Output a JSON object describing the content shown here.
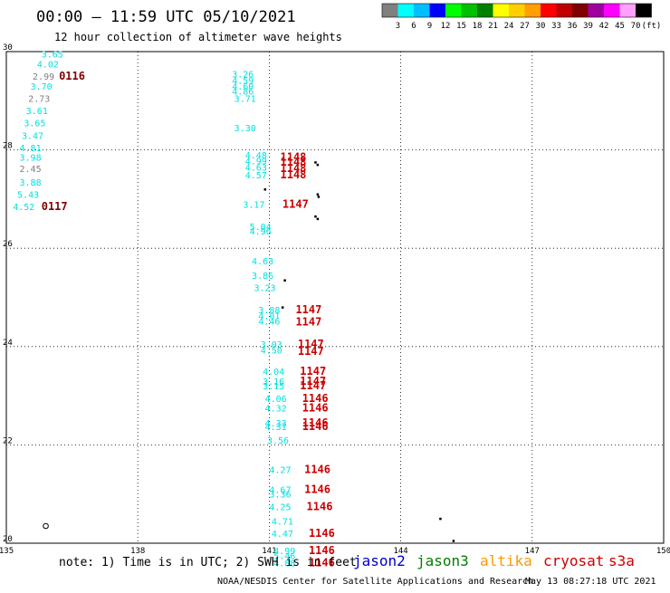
{
  "header": {
    "title": "00:00 – 11:59 UTC 05/10/2021",
    "subtitle": "12 hour collection of altimeter wave heights"
  },
  "legend": {
    "labels": [
      "3",
      "6",
      "9",
      "12",
      "15",
      "18",
      "21",
      "24",
      "27",
      "30",
      "33",
      "36",
      "39",
      "42",
      "45",
      "70",
      "(ft)"
    ],
    "colors": [
      "#808080",
      "#00ffff",
      "#00bfff",
      "#0000ff",
      "#00ff00",
      "#00c000",
      "#008000",
      "#ffff00",
      "#ffd000",
      "#ffa000",
      "#ff0000",
      "#c00000",
      "#800000",
      "#a000a0",
      "#ff00ff",
      "#ffa0ff",
      "#000000"
    ]
  },
  "footer": {
    "note": "note: 1) Time is in UTC; 2) SWH is in feet",
    "missions": [
      {
        "name": "jason2",
        "color": "#0000cc"
      },
      {
        "name": "jason3",
        "color": "#008000"
      },
      {
        "name": "altika",
        "color": "#ff9900"
      },
      {
        "name": "cryosat",
        "color": "#cc0000"
      },
      {
        "name": "s3a",
        "color": "#cc0000"
      }
    ],
    "credit": "NOAA/NESDIS Center for Satellite Applications and Research",
    "timestamp": "May 13 08:27:18 UTC 2021"
  },
  "chart_data": {
    "type": "scatter",
    "xlim": [
      135,
      150
    ],
    "ylim": [
      20,
      30
    ],
    "xticks": [
      "135",
      "138",
      "141",
      "144",
      "147",
      "150"
    ],
    "yticks": [
      "20",
      "22",
      "24",
      "26",
      "28",
      "30"
    ],
    "grid": true,
    "points": [
      {
        "x": 135.8,
        "y": 29.95,
        "label": "3.65",
        "color": "#00e0e0"
      },
      {
        "x": 135.7,
        "y": 29.75,
        "label": "4.02",
        "color": "#00e0e0"
      },
      {
        "x": 135.6,
        "y": 29.5,
        "label": "2.99",
        "color": "#808080"
      },
      {
        "x": 135.55,
        "y": 29.3,
        "label": "3.70",
        "color": "#00e0e0"
      },
      {
        "x": 135.5,
        "y": 29.05,
        "label": "2.73",
        "color": "#808080"
      },
      {
        "x": 135.45,
        "y": 28.8,
        "label": "3.61",
        "color": "#00e0e0"
      },
      {
        "x": 135.4,
        "y": 28.55,
        "label": "3.65",
        "color": "#00e0e0"
      },
      {
        "x": 135.35,
        "y": 28.3,
        "label": "3.47",
        "color": "#00e0e0"
      },
      {
        "x": 135.3,
        "y": 28.05,
        "label": "4.81",
        "color": "#00e0e0"
      },
      {
        "x": 135.3,
        "y": 27.85,
        "label": "3.98",
        "color": "#00e0e0"
      },
      {
        "x": 135.3,
        "y": 27.62,
        "label": "2.45",
        "color": "#808080"
      },
      {
        "x": 135.3,
        "y": 27.35,
        "label": "3.88",
        "color": "#00e0e0"
      },
      {
        "x": 135.25,
        "y": 27.1,
        "label": "5.43",
        "color": "#00e0e0"
      },
      {
        "x": 135.15,
        "y": 26.85,
        "label": "4.52",
        "color": "#00e0e0"
      },
      {
        "x": 140.15,
        "y": 29.55,
        "label": "3.26",
        "color": "#00e0e0"
      },
      {
        "x": 140.15,
        "y": 29.42,
        "label": "4.59",
        "color": "#00e0e0"
      },
      {
        "x": 140.15,
        "y": 29.3,
        "label": "4.60",
        "color": "#00e0e0"
      },
      {
        "x": 140.15,
        "y": 29.2,
        "label": "4.86",
        "color": "#00e0e0"
      },
      {
        "x": 140.2,
        "y": 29.05,
        "label": "3.71",
        "color": "#00e0e0"
      },
      {
        "x": 140.2,
        "y": 28.45,
        "label": "3.30",
        "color": "#00e0e0"
      },
      {
        "x": 140.45,
        "y": 27.9,
        "label": "4.48",
        "color": "#00e0e0"
      },
      {
        "x": 140.45,
        "y": 27.78,
        "label": "4.99",
        "color": "#00e0e0"
      },
      {
        "x": 140.45,
        "y": 27.65,
        "label": "4.63",
        "color": "#00e0e0"
      },
      {
        "x": 140.45,
        "y": 27.5,
        "label": "4.57",
        "color": "#00e0e0"
      },
      {
        "x": 140.4,
        "y": 26.9,
        "label": "3.17",
        "color": "#00e0e0"
      },
      {
        "x": 140.55,
        "y": 26.45,
        "label": "5.04",
        "color": "#00e0e0"
      },
      {
        "x": 140.55,
        "y": 26.35,
        "label": "4.96",
        "color": "#00e0e0"
      },
      {
        "x": 140.6,
        "y": 25.75,
        "label": "4.63",
        "color": "#00e0e0"
      },
      {
        "x": 140.6,
        "y": 25.45,
        "label": "3.86",
        "color": "#00e0e0"
      },
      {
        "x": 140.65,
        "y": 25.2,
        "label": "3.23",
        "color": "#00e0e0"
      },
      {
        "x": 140.75,
        "y": 24.75,
        "label": "3.88",
        "color": "#00e0e0"
      },
      {
        "x": 140.75,
        "y": 24.63,
        "label": "4.01",
        "color": "#00e0e0"
      },
      {
        "x": 140.75,
        "y": 24.52,
        "label": "4.46",
        "color": "#00e0e0"
      },
      {
        "x": 140.8,
        "y": 24.05,
        "label": "3.03",
        "color": "#00e0e0"
      },
      {
        "x": 140.8,
        "y": 23.93,
        "label": "4.50",
        "color": "#00e0e0"
      },
      {
        "x": 140.85,
        "y": 23.5,
        "label": "4.04",
        "color": "#00e0e0"
      },
      {
        "x": 140.85,
        "y": 23.3,
        "label": "3.16",
        "color": "#00e0e0"
      },
      {
        "x": 140.85,
        "y": 23.2,
        "label": "3.15",
        "color": "#00e0e0"
      },
      {
        "x": 140.9,
        "y": 22.95,
        "label": "4.06",
        "color": "#00e0e0"
      },
      {
        "x": 140.9,
        "y": 22.75,
        "label": "4.32",
        "color": "#00e0e0"
      },
      {
        "x": 140.9,
        "y": 22.45,
        "label": "4.33",
        "color": "#00e0e0"
      },
      {
        "x": 140.9,
        "y": 22.38,
        "label": "4.31",
        "color": "#00e0e0"
      },
      {
        "x": 140.95,
        "y": 22.1,
        "label": "3.56",
        "color": "#00e0e0"
      },
      {
        "x": 141.0,
        "y": 21.5,
        "label": "4.27",
        "color": "#00e0e0"
      },
      {
        "x": 141.0,
        "y": 21.1,
        "label": "4.67",
        "color": "#00e0e0"
      },
      {
        "x": 141.0,
        "y": 21.0,
        "label": "3.36",
        "color": "#00e0e0"
      },
      {
        "x": 141.0,
        "y": 20.75,
        "label": "4.25",
        "color": "#00e0e0"
      },
      {
        "x": 141.05,
        "y": 20.45,
        "label": "4.71",
        "color": "#00e0e0"
      },
      {
        "x": 141.05,
        "y": 20.2,
        "label": "4.47",
        "color": "#00e0e0"
      },
      {
        "x": 141.1,
        "y": 19.85,
        "label": "4.99",
        "color": "#00e0e0"
      },
      {
        "x": 141.1,
        "y": 19.75,
        "label": "5.46",
        "color": "#00e0e0"
      },
      {
        "x": 141.1,
        "y": 19.6,
        "label": "4.88",
        "color": "#00e0e0"
      }
    ],
    "passes": [
      {
        "x": 136.2,
        "y": 29.5,
        "label": "0116",
        "color": "#800000"
      },
      {
        "x": 135.8,
        "y": 26.85,
        "label": "0117",
        "color": "#800000"
      },
      {
        "x": 141.25,
        "y": 27.85,
        "label": "1148",
        "color": "#cc0000"
      },
      {
        "x": 141.25,
        "y": 27.75,
        "label": "1148",
        "color": "#cc0000"
      },
      {
        "x": 141.25,
        "y": 27.62,
        "label": "1148",
        "color": "#cc0000"
      },
      {
        "x": 141.25,
        "y": 27.5,
        "label": "1148",
        "color": "#cc0000"
      },
      {
        "x": 141.3,
        "y": 26.9,
        "label": "1147",
        "color": "#cc0000"
      },
      {
        "x": 141.6,
        "y": 24.75,
        "label": "1147",
        "color": "#cc0000"
      },
      {
        "x": 141.6,
        "y": 24.5,
        "label": "1147",
        "color": "#cc0000"
      },
      {
        "x": 141.65,
        "y": 24.05,
        "label": "1147",
        "color": "#cc0000"
      },
      {
        "x": 141.65,
        "y": 23.9,
        "label": "1147",
        "color": "#cc0000"
      },
      {
        "x": 141.7,
        "y": 23.5,
        "label": "1147",
        "color": "#cc0000"
      },
      {
        "x": 141.7,
        "y": 23.3,
        "label": "1147",
        "color": "#cc0000"
      },
      {
        "x": 141.7,
        "y": 23.2,
        "label": "1147",
        "color": "#cc0000"
      },
      {
        "x": 141.75,
        "y": 22.95,
        "label": "1146",
        "color": "#cc0000"
      },
      {
        "x": 141.75,
        "y": 22.75,
        "label": "1146",
        "color": "#cc0000"
      },
      {
        "x": 141.75,
        "y": 22.45,
        "label": "1146",
        "color": "#cc0000"
      },
      {
        "x": 141.75,
        "y": 22.38,
        "label": "1146",
        "color": "#cc0000"
      },
      {
        "x": 141.8,
        "y": 21.5,
        "label": "1146",
        "color": "#cc0000"
      },
      {
        "x": 141.8,
        "y": 21.1,
        "label": "1146",
        "color": "#cc0000"
      },
      {
        "x": 141.85,
        "y": 20.75,
        "label": "1146",
        "color": "#cc0000"
      },
      {
        "x": 141.9,
        "y": 20.2,
        "label": "1146",
        "color": "#cc0000"
      },
      {
        "x": 141.9,
        "y": 19.85,
        "label": "1146",
        "color": "#cc0000"
      },
      {
        "x": 141.9,
        "y": 19.6,
        "label": "1146",
        "color": "#cc0000"
      }
    ],
    "land": [
      {
        "x": 142.05,
        "y": 27.75
      },
      {
        "x": 142.1,
        "y": 27.7
      },
      {
        "x": 142.1,
        "y": 27.1
      },
      {
        "x": 142.12,
        "y": 27.05
      },
      {
        "x": 142.05,
        "y": 26.65
      },
      {
        "x": 142.1,
        "y": 26.6
      },
      {
        "x": 141.35,
        "y": 25.35
      },
      {
        "x": 141.3,
        "y": 24.8
      },
      {
        "x": 140.9,
        "y": 27.2
      },
      {
        "x": 144.9,
        "y": 20.5
      },
      {
        "x": 145.2,
        "y": 20.05
      }
    ],
    "rings": [
      {
        "x": 135.9,
        "y": 20.35
      }
    ]
  }
}
